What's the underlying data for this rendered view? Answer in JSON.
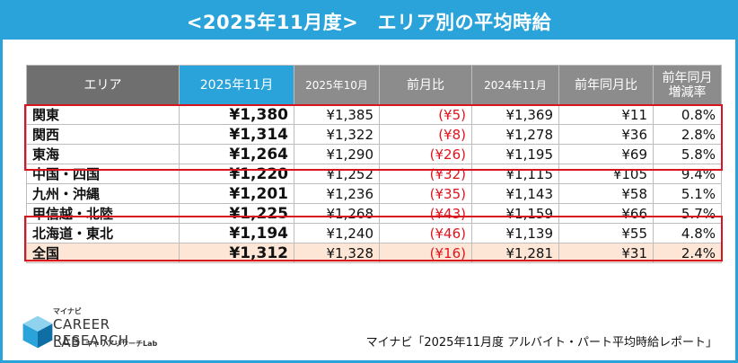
{
  "title": "<2025年11月度>　エリア別の平均時給",
  "table": {
    "headers": {
      "region": "エリア",
      "current": "2025年11月",
      "prev_month": "2025年10月",
      "mom_diff": "前月比",
      "prev_year": "2024年11月",
      "yoy_diff": "前年同月比",
      "yoy_rate_line1": "前年同月",
      "yoy_rate_line2": "増減率"
    },
    "rows": [
      {
        "region": "関東",
        "current": "¥1,380",
        "prev_month": "¥1,385",
        "mom_diff": "(¥5)",
        "prev_year": "¥1,369",
        "yoy_diff": "¥11",
        "yoy_rate": "0.8%"
      },
      {
        "region": "関西",
        "current": "¥1,314",
        "prev_month": "¥1,322",
        "mom_diff": "(¥8)",
        "prev_year": "¥1,278",
        "yoy_diff": "¥36",
        "yoy_rate": "2.8%"
      },
      {
        "region": "東海",
        "current": "¥1,264",
        "prev_month": "¥1,290",
        "mom_diff": "(¥26)",
        "prev_year": "¥1,195",
        "yoy_diff": "¥69",
        "yoy_rate": "5.8%"
      },
      {
        "region": "中国・四国",
        "current": "¥1,220",
        "prev_month": "¥1,252",
        "mom_diff": "(¥32)",
        "prev_year": "¥1,115",
        "yoy_diff": "¥105",
        "yoy_rate": "9.4%"
      },
      {
        "region": "九州・沖縄",
        "current": "¥1,201",
        "prev_month": "¥1,236",
        "mom_diff": "(¥35)",
        "prev_year": "¥1,143",
        "yoy_diff": "¥58",
        "yoy_rate": "5.1%"
      },
      {
        "region": "甲信越・北陸",
        "current": "¥1,225",
        "prev_month": "¥1,268",
        "mom_diff": "(¥43)",
        "prev_year": "¥1,159",
        "yoy_diff": "¥66",
        "yoy_rate": "5.7%"
      },
      {
        "region": "北海道・東北",
        "current": "¥1,194",
        "prev_month": "¥1,240",
        "mom_diff": "(¥46)",
        "prev_year": "¥1,139",
        "yoy_diff": "¥55",
        "yoy_rate": "4.8%"
      },
      {
        "region": "全国",
        "current": "¥1,312",
        "prev_month": "¥1,328",
        "mom_diff": "(¥16)",
        "prev_year": "¥1,281",
        "yoy_diff": "¥31",
        "yoy_rate": "2.4%"
      }
    ]
  },
  "logo": {
    "small_jp": "マイナビ",
    "line1": "CAREER RESEARCH",
    "line2": "LAB",
    "line2_sub": "キャリアリサーチLab"
  },
  "source": "マイナビ「2025年11月度 アルバイト・パート平均時給レポート」",
  "colors": {
    "accent": "#29a3d9",
    "negative": "#e0141e",
    "highlight_border": "#d8141e",
    "national_row_bg": "#fde6d6"
  }
}
